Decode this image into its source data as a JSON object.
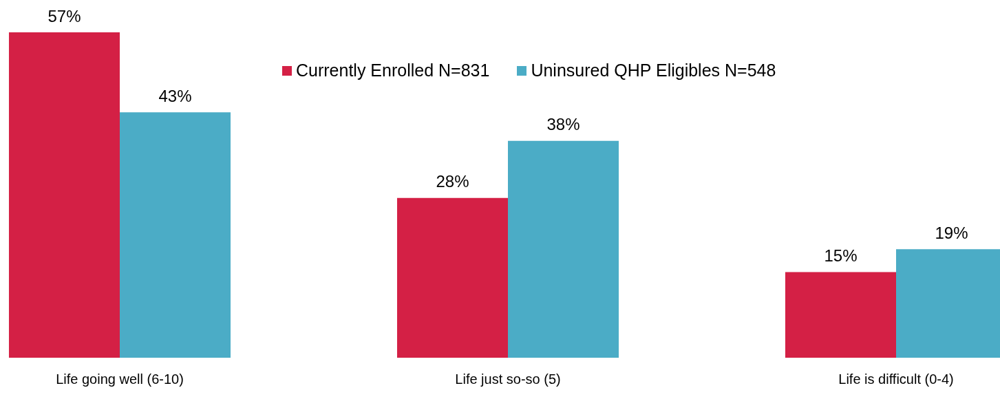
{
  "chart_data": {
    "type": "bar",
    "categories": [
      "Life going well (6-10)",
      "Life just so-so (5)",
      "Life is difficult (0-4)"
    ],
    "series": [
      {
        "name": "Currently Enrolled N=831",
        "color": "#d42045",
        "values": [
          57,
          28,
          15
        ],
        "value_labels": [
          "57%",
          "28%",
          "15%"
        ]
      },
      {
        "name": "Uninsured QHP Eligibles N=548",
        "color": "#4bacc6",
        "values": [
          43,
          38,
          19
        ],
        "value_labels": [
          "43%",
          "38%",
          "19%"
        ]
      }
    ],
    "legend": "top",
    "grid": false
  }
}
